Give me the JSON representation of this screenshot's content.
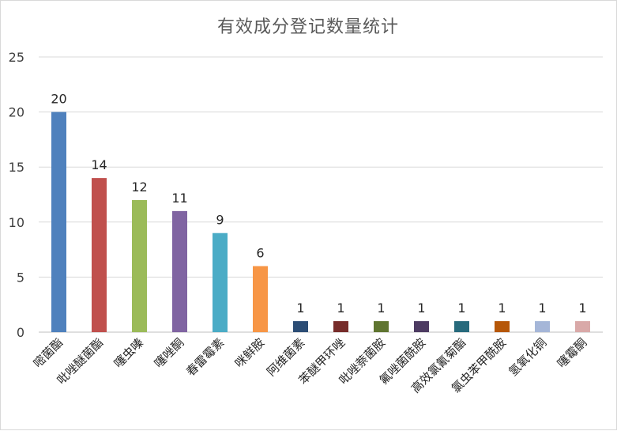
{
  "chart_data": {
    "type": "bar",
    "title": "有效成分登记数量统计",
    "categories": [
      "嘧菌酯",
      "吡唑醚菌酯",
      "噻虫嗪",
      "噻唑酮",
      "春雷霉素",
      "咪鲜胺",
      "阿维菌素",
      "苯醚甲环唑",
      "吡唑萘菌胺",
      "氟唑菌酰胺",
      "高效氯氰菊酯",
      "氯虫苯甲酰胺",
      "氢氧化铜",
      "噻霉酮"
    ],
    "values": [
      20,
      14,
      12,
      11,
      9,
      6,
      1,
      1,
      1,
      1,
      1,
      1,
      1,
      1
    ],
    "colors": [
      "#4f81bd",
      "#c0504d",
      "#9bbb59",
      "#8064a2",
      "#4bacc6",
      "#f79646",
      "#2c4d75",
      "#772c2a",
      "#5f7530",
      "#4d3b62",
      "#276a7c",
      "#b65708",
      "#a5b6d8",
      "#d9a9a8"
    ],
    "ylim": [
      0,
      25
    ],
    "yticks": [
      0,
      5,
      10,
      15,
      20,
      25
    ],
    "xlabel": "",
    "ylabel": "",
    "grid": true,
    "legend": "none",
    "data_labels": true
  }
}
